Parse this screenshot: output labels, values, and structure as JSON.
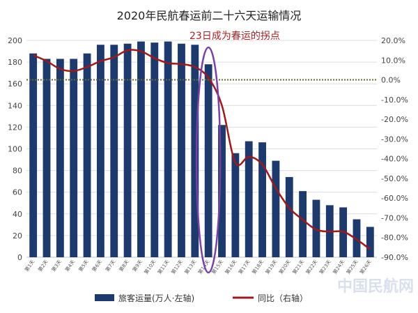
{
  "chart_data": {
    "type": "bar",
    "title": "2020年民航春运前二十六天运输情况",
    "annotation": "23日成为春运的拐点",
    "watermark": "中国民航网",
    "categories": [
      "第1天",
      "第2天",
      "第3天",
      "第4天",
      "第5天",
      "第6天",
      "第7天",
      "第8天",
      "第9天",
      "第10天",
      "第11天",
      "第12天",
      "第13天",
      "第14天",
      "第15天",
      "第16天",
      "第17天",
      "第18天",
      "第19天",
      "第20天",
      "第21天",
      "第22天",
      "第23天",
      "第24天",
      "第25天",
      "第26天"
    ],
    "series": [
      {
        "name": "旅客运量(万人·左轴)",
        "axis": "left",
        "color": "#1c3a6e",
        "values": [
          188,
          183,
          183,
          183,
          188,
          196,
          196,
          197,
          199,
          198,
          199,
          197,
          196,
          178,
          122,
          96,
          107,
          106,
          89,
          74,
          61,
          53,
          48,
          46,
          35,
          28
        ]
      },
      {
        "name": "同比（右轴）",
        "axis": "right",
        "color": "#a01818",
        "values": [
          12.5,
          9.5,
          5.5,
          4.5,
          6.5,
          9.5,
          11.5,
          15,
          14.5,
          11,
          8.5,
          8,
          6.5,
          1,
          -13,
          -42,
          -39,
          -43,
          -55,
          -65,
          -71,
          -76,
          -77,
          -77,
          -81,
          -86
        ]
      }
    ],
    "left_axis": {
      "min": 0,
      "max": 200,
      "ticks": [
        "0",
        "20",
        "40",
        "60",
        "80",
        "100",
        "120",
        "140",
        "160",
        "180",
        "200"
      ]
    },
    "right_axis": {
      "min": -90,
      "max": 20,
      "ticks": [
        "20.0%",
        "10.0%",
        "0.0%",
        "-10.0%",
        "-20.0%",
        "-30.0%",
        "-40.0%",
        "-50.0%",
        "-60.0%",
        "-70.0%",
        "-80.0%",
        "-90.0%"
      ]
    },
    "reference_line": {
      "axis": "right",
      "value": 0
    },
    "highlight_category_index": 13,
    "grid": true,
    "legend_position": "bottom"
  }
}
